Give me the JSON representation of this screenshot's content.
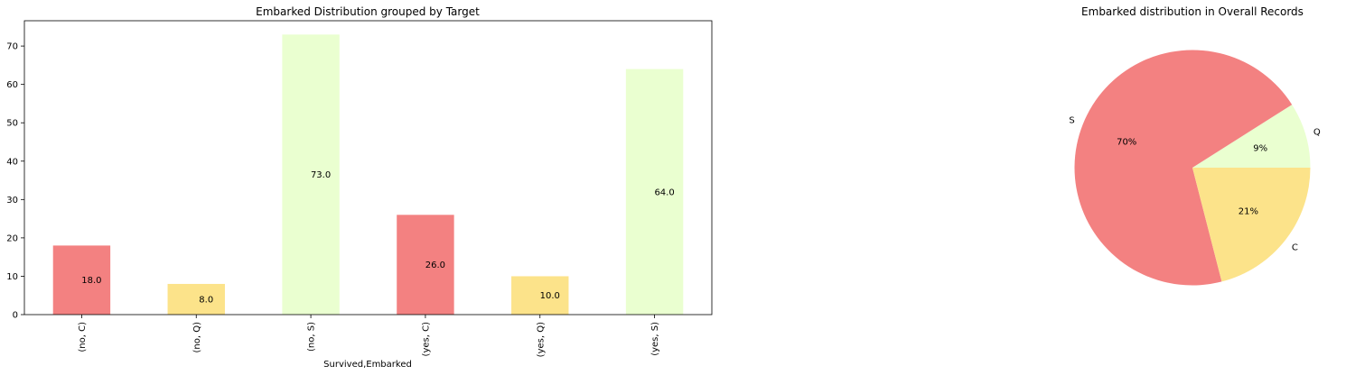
{
  "chart_data": [
    {
      "type": "bar",
      "title": "Embarked Distribution grouped by Target",
      "xlabel": "Survived,Embarked",
      "ylabel": "",
      "categories": [
        "(no, C)",
        "(no, Q)",
        "(no, S)",
        "(yes, C)",
        "(yes, Q)",
        "(yes, S)"
      ],
      "values": [
        18,
        8,
        73,
        26,
        10,
        64
      ],
      "data_labels": [
        "18.0",
        "8.0",
        "73.0",
        "26.0",
        "10.0",
        "64.0"
      ],
      "colors": [
        "#f38181",
        "#fce38a",
        "#eaffd0",
        "#f38181",
        "#fce38a",
        "#eaffd0"
      ],
      "ylim": [
        0,
        76.6
      ],
      "yticks": [
        0,
        10,
        20,
        30,
        40,
        50,
        60,
        70
      ],
      "grid": false
    },
    {
      "type": "pie",
      "title": "Embarked distribution in Overall Records",
      "labels": [
        "Q",
        "S",
        "C"
      ],
      "values": [
        9,
        70,
        21
      ],
      "pct_labels": [
        "9%",
        "70%",
        "21%"
      ],
      "colors": [
        "#eaffd0",
        "#f38181",
        "#fce38a"
      ]
    }
  ]
}
